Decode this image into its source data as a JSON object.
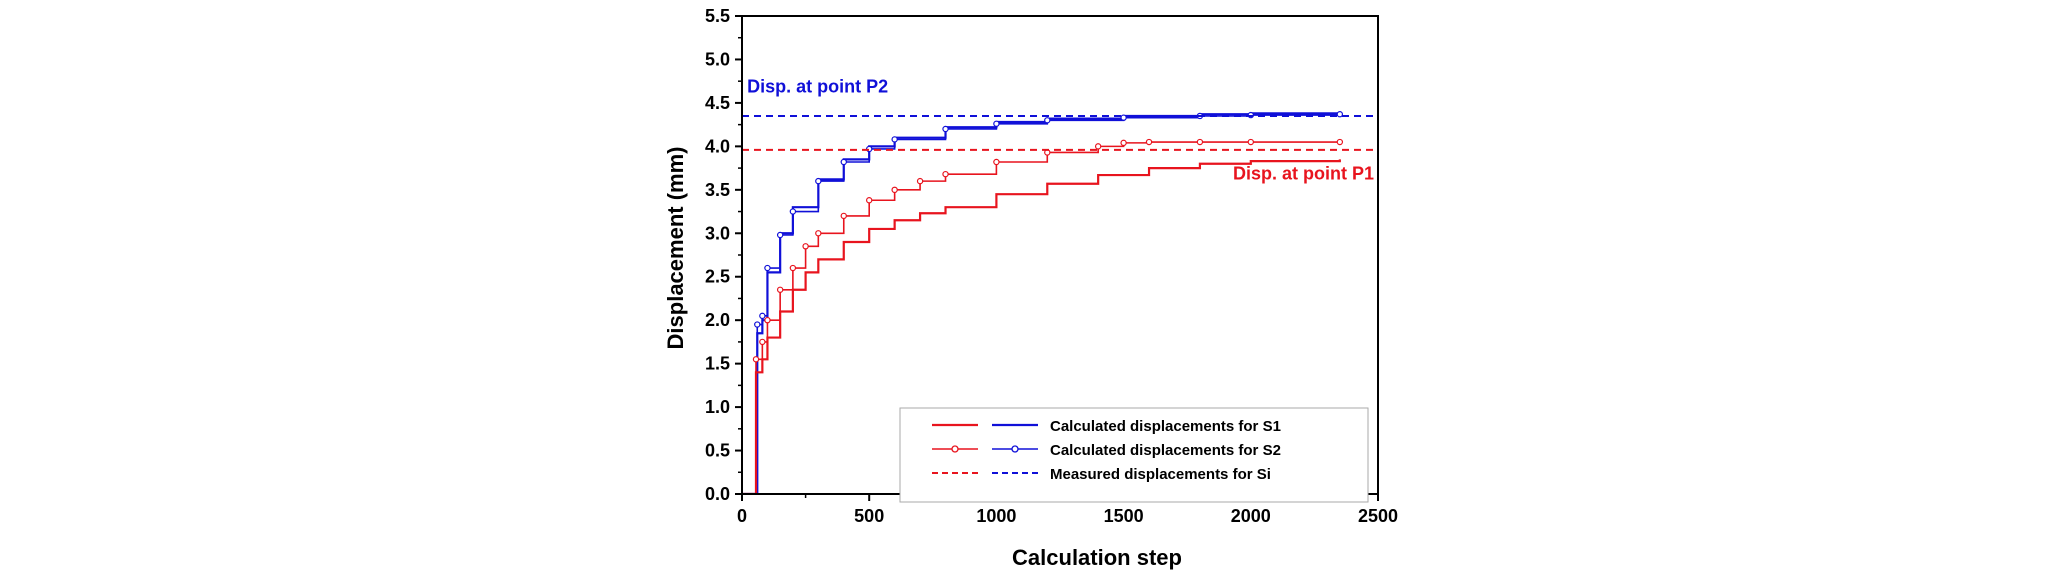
{
  "chart_data": {
    "type": "line",
    "xlabel": "Calculation step",
    "ylabel": "Displacement (mm)",
    "xlim": [
      0,
      2500
    ],
    "ylim": [
      0,
      5.5
    ],
    "xticks": [
      0,
      500,
      1000,
      1500,
      2000,
      2500
    ],
    "yticks": [
      0.0,
      0.5,
      1.0,
      1.5,
      2.0,
      2.5,
      3.0,
      3.5,
      4.0,
      4.5,
      5.0,
      5.5
    ],
    "xtick_labels": [
      "0",
      "500",
      "1000",
      "1500",
      "2000",
      "2500"
    ],
    "ytick_labels": [
      "0.0",
      "0.5",
      "1.0",
      "1.5",
      "2.0",
      "2.5",
      "3.0",
      "3.5",
      "4.0",
      "4.5",
      "5.0",
      "5.5"
    ],
    "grid": false,
    "legend_placement": "bottom-right",
    "colors": {
      "P1": "#e8141e",
      "P2": "#1010d8"
    },
    "annotations": [
      {
        "text": "Disp. at point P2",
        "x": 20,
        "y": 4.62,
        "color": "#1010d8"
      },
      {
        "text": "Disp. at point P1",
        "x": 1880,
        "y": 3.62,
        "color": "#e8141e"
      }
    ],
    "legend": [
      {
        "label": "Calculated displacements for S1",
        "style": "solid"
      },
      {
        "label": "Calculated displacements for S2",
        "style": "marker"
      },
      {
        "label": "Measured displacements for Si",
        "style": "dashed"
      }
    ],
    "series": [
      {
        "group": "S1",
        "point": "P2",
        "style": "solid",
        "x": [
          0,
          40,
          60,
          80,
          100,
          150,
          200,
          300,
          400,
          500,
          600,
          800,
          1000,
          1200,
          1500,
          1800,
          2000,
          2350
        ],
        "y": [
          0,
          0,
          1.85,
          2.0,
          2.55,
          3.0,
          3.3,
          3.62,
          3.85,
          4.0,
          4.1,
          4.22,
          4.28,
          4.32,
          4.35,
          4.37,
          4.38,
          4.4
        ]
      },
      {
        "group": "S2",
        "point": "P2",
        "style": "marker",
        "x": [
          0,
          40,
          60,
          80,
          100,
          150,
          200,
          300,
          400,
          500,
          600,
          800,
          1000,
          1200,
          1500,
          1800,
          2000,
          2350
        ],
        "y": [
          0,
          0,
          1.95,
          2.05,
          2.6,
          2.98,
          3.25,
          3.6,
          3.82,
          3.97,
          4.08,
          4.2,
          4.26,
          4.3,
          4.33,
          4.35,
          4.36,
          4.37
        ]
      },
      {
        "group": "S1",
        "point": "P1",
        "style": "solid",
        "x": [
          0,
          40,
          55,
          80,
          100,
          150,
          200,
          250,
          300,
          400,
          500,
          600,
          700,
          800,
          1000,
          1200,
          1400,
          1600,
          1800,
          2000,
          2350
        ],
        "y": [
          0,
          0,
          1.4,
          1.55,
          1.8,
          2.1,
          2.35,
          2.55,
          2.7,
          2.9,
          3.05,
          3.15,
          3.23,
          3.3,
          3.45,
          3.57,
          3.67,
          3.75,
          3.8,
          3.83,
          3.85
        ]
      },
      {
        "group": "S2",
        "point": "P1",
        "style": "marker",
        "x": [
          0,
          40,
          55,
          80,
          100,
          150,
          200,
          250,
          300,
          400,
          500,
          600,
          700,
          800,
          1000,
          1200,
          1400,
          1500,
          1600,
          1800,
          2000,
          2350
        ],
        "y": [
          0,
          0,
          1.55,
          1.75,
          2.0,
          2.35,
          2.6,
          2.85,
          3.0,
          3.2,
          3.38,
          3.5,
          3.6,
          3.68,
          3.82,
          3.93,
          4.0,
          4.04,
          4.05,
          4.05,
          4.05,
          4.05
        ]
      },
      {
        "group": "Measured",
        "point": "P2",
        "style": "dashed",
        "x": [
          0,
          2500
        ],
        "y": [
          4.35,
          4.35
        ]
      },
      {
        "group": "Measured",
        "point": "P1",
        "style": "dashed",
        "x": [
          0,
          2500
        ],
        "y": [
          3.96,
          3.96
        ]
      }
    ]
  }
}
